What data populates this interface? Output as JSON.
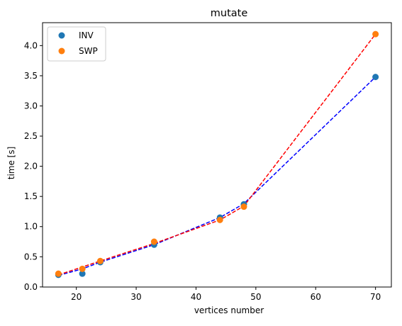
{
  "chart_data": {
    "type": "scatter",
    "title": "mutate",
    "xlabel": "vertices number",
    "ylabel": "time [s]",
    "xlim": [
      14.35,
      72.65
    ],
    "ylim": [
      -0.0015,
      4.38
    ],
    "xticks": [
      20,
      30,
      40,
      50,
      60,
      70
    ],
    "yticks": [
      0.0,
      0.5,
      1.0,
      1.5,
      2.0,
      2.5,
      3.0,
      3.5,
      4.0
    ],
    "xtick_labels": [
      "20",
      "30",
      "40",
      "50",
      "60",
      "70"
    ],
    "ytick_labels": [
      "0.0",
      "0.5",
      "1.0",
      "1.5",
      "2.0",
      "2.5",
      "3.0",
      "3.5",
      "4.0"
    ],
    "grid": false,
    "legend_position": "top-left",
    "series": [
      {
        "name": "INV",
        "marker_color": "#1f77b4",
        "line_color": "#0000ff",
        "points": [
          {
            "x": 17,
            "y": 0.2
          },
          {
            "x": 21,
            "y": 0.22
          },
          {
            "x": 24,
            "y": 0.41
          },
          {
            "x": 33,
            "y": 0.7
          },
          {
            "x": 44,
            "y": 1.15
          },
          {
            "x": 48,
            "y": 1.37
          },
          {
            "x": 70,
            "y": 3.48
          }
        ],
        "fit_line": [
          {
            "x": 17,
            "y": 0.19
          },
          {
            "x": 21,
            "y": 0.3
          },
          {
            "x": 24,
            "y": 0.41
          },
          {
            "x": 33,
            "y": 0.7
          },
          {
            "x": 44,
            "y": 1.15
          },
          {
            "x": 48,
            "y": 1.38
          },
          {
            "x": 70,
            "y": 3.48
          }
        ]
      },
      {
        "name": "SWP",
        "marker_color": "#ff7f0e",
        "line_color": "#ff0000",
        "points": [
          {
            "x": 17,
            "y": 0.22
          },
          {
            "x": 21,
            "y": 0.3
          },
          {
            "x": 24,
            "y": 0.43
          },
          {
            "x": 33,
            "y": 0.75
          },
          {
            "x": 44,
            "y": 1.11
          },
          {
            "x": 48,
            "y": 1.33
          },
          {
            "x": 70,
            "y": 4.19
          }
        ],
        "fit_line": [
          {
            "x": 17,
            "y": 0.2
          },
          {
            "x": 21,
            "y": 0.33
          },
          {
            "x": 24,
            "y": 0.43
          },
          {
            "x": 33,
            "y": 0.72
          },
          {
            "x": 44,
            "y": 1.11
          },
          {
            "x": 48,
            "y": 1.34
          },
          {
            "x": 70,
            "y": 4.19
          }
        ]
      }
    ]
  }
}
